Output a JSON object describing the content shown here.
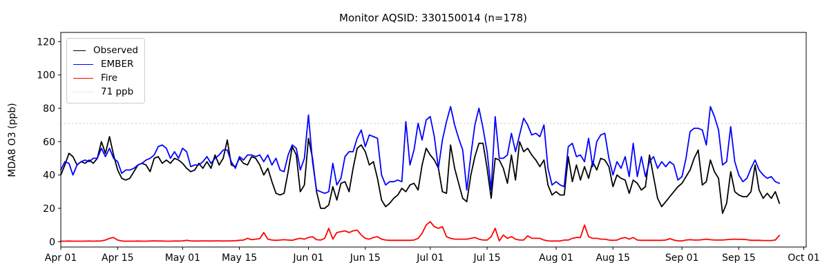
{
  "title": "Monitor AQSID: 330150014 (n=178)",
  "axes": {
    "ylabel": "MDA8 O3 (ppb)",
    "y_tick_labels": [
      "0",
      "20",
      "40",
      "60",
      "80",
      "100",
      "120"
    ],
    "y_tick_values": [
      0,
      20,
      40,
      60,
      80,
      100,
      120
    ],
    "x_tick_labels": [
      "Apr 01",
      "Apr 15",
      "May 01",
      "May 15",
      "Jun 01",
      "Jun 15",
      "Jul 01",
      "Jul 15",
      "Aug 01",
      "Aug 15",
      "Sep 01",
      "Sep 15",
      "Oct 01"
    ],
    "x_tick_days": [
      0,
      14,
      30,
      44,
      61,
      75,
      91,
      105,
      122,
      136,
      153,
      167,
      183
    ]
  },
  "legend": {
    "items": [
      {
        "label": "Observed",
        "color": "#000000",
        "linestyle": "solid"
      },
      {
        "label": "EMBER",
        "color": "#0000ff",
        "linestyle": "solid"
      },
      {
        "label": "Fire",
        "color": "#ff0000",
        "linestyle": "solid"
      },
      {
        "label": "71 ppb",
        "color": "#d3d3d3",
        "linestyle": "dotted"
      }
    ]
  },
  "chart_data": {
    "type": "line",
    "title": "Monitor AQSID: 330150014 (n=178)",
    "xlabel": "",
    "ylabel": "MDA8 O3 (ppb)",
    "x_start": "Apr 01",
    "x_end": "Sep 25",
    "frequency": "daily",
    "n_points": 178,
    "ylim": [
      -3.2,
      125.5
    ],
    "xlim_days": [
      0,
      183.6
    ],
    "grid": false,
    "legend_position": "upper left",
    "threshold": {
      "label": "71 ppb",
      "value": 71,
      "color": "#d3d3d3",
      "linestyle": "dotted"
    },
    "x_tick_labels": [
      "Apr 01",
      "Apr 15",
      "May 01",
      "May 15",
      "Jun 01",
      "Jun 15",
      "Jul 01",
      "Jul 15",
      "Aug 01",
      "Aug 15",
      "Sep 01",
      "Sep 15",
      "Oct 01"
    ],
    "x_tick_days": [
      0,
      14,
      30,
      44,
      61,
      75,
      91,
      105,
      122,
      136,
      153,
      167,
      183
    ],
    "series": [
      {
        "name": "Observed",
        "color": "#000000",
        "values": [
          40,
          46,
          53,
          51,
          46,
          48,
          47,
          49,
          47,
          50,
          60,
          53,
          63,
          52,
          43,
          38,
          37,
          38,
          42,
          46,
          47,
          46,
          42,
          50,
          51,
          47,
          49,
          47,
          50,
          49,
          47,
          44,
          42,
          43,
          47,
          44,
          48,
          44,
          52,
          46,
          50,
          61,
          46,
          45,
          50,
          47,
          46,
          51,
          50,
          46,
          40,
          44,
          36,
          29,
          28,
          29,
          42,
          57,
          52,
          30,
          34,
          62,
          50,
          30,
          20,
          20,
          22,
          33,
          25,
          35,
          36,
          30,
          44,
          56,
          58,
          54,
          46,
          48,
          38,
          25,
          21,
          23,
          26,
          28,
          32,
          30,
          34,
          35,
          31,
          46,
          56,
          52,
          49,
          44,
          30,
          29,
          58,
          44,
          35,
          26,
          24,
          40,
          51,
          59,
          59,
          44,
          26,
          50,
          49,
          44,
          35,
          52,
          37,
          60,
          54,
          56,
          52,
          49,
          45,
          49,
          34,
          28,
          30,
          28,
          28,
          51,
          36,
          46,
          37,
          45,
          38,
          48,
          43,
          50,
          49,
          45,
          33,
          40,
          38,
          37,
          29,
          37,
          35,
          31,
          33,
          52,
          39,
          26,
          21,
          24,
          27,
          30,
          33,
          35,
          39,
          43,
          50,
          55,
          34,
          36,
          49,
          42,
          38,
          17,
          23,
          42,
          30,
          28,
          27,
          27,
          30,
          46,
          31,
          26,
          29,
          26,
          30,
          23
        ]
      },
      {
        "name": "EMBER",
        "color": "#0000ff",
        "values": [
          43,
          48,
          47,
          40,
          46,
          48,
          49,
          48,
          50,
          50,
          56,
          51,
          56,
          50,
          48,
          41,
          43,
          43,
          44,
          46,
          47,
          49,
          50,
          52,
          57,
          58,
          56,
          50,
          54,
          50,
          56,
          54,
          45,
          46,
          46,
          48,
          51,
          47,
          50,
          52,
          55,
          55,
          48,
          44,
          51,
          49,
          52,
          52,
          51,
          52,
          48,
          52,
          46,
          50,
          43,
          42,
          52,
          58,
          56,
          43,
          50,
          76,
          48,
          31,
          30,
          29,
          30,
          47,
          34,
          38,
          51,
          54,
          54,
          62,
          67,
          57,
          64,
          63,
          62,
          40,
          34,
          36,
          36,
          37,
          36,
          72,
          46,
          55,
          71,
          61,
          73,
          75,
          63,
          44,
          61,
          72,
          81,
          70,
          62,
          55,
          31,
          52,
          70,
          80,
          68,
          54,
          31,
          75,
          50,
          50,
          52,
          65,
          54,
          64,
          74,
          70,
          64,
          65,
          63,
          70,
          44,
          34,
          36,
          34,
          33,
          57,
          59,
          51,
          52,
          48,
          62,
          45,
          60,
          64,
          65,
          50,
          40,
          48,
          44,
          51,
          39,
          59,
          39,
          51,
          39,
          48,
          51,
          44,
          48,
          45,
          48,
          46,
          37,
          39,
          50,
          66,
          68,
          68,
          67,
          58,
          81,
          75,
          67,
          46,
          48,
          69,
          48,
          40,
          36,
          38,
          44,
          49,
          43,
          40,
          38,
          39,
          36,
          35
        ]
      },
      {
        "name": "Fire",
        "color": "#ff0000",
        "values": [
          0.3,
          0.3,
          0.4,
          0.3,
          0.3,
          0.3,
          0.3,
          0.4,
          0.3,
          0.4,
          0.5,
          1.0,
          2.0,
          2.5,
          1.0,
          0.4,
          0.3,
          0.3,
          0.3,
          0.4,
          0.3,
          0.3,
          0.4,
          0.5,
          0.4,
          0.4,
          0.3,
          0.3,
          0.4,
          0.4,
          0.5,
          0.8,
          0.5,
          0.4,
          0.4,
          0.5,
          0.5,
          0.4,
          0.5,
          0.5,
          0.4,
          0.5,
          0.5,
          0.6,
          0.8,
          1.0,
          2.0,
          1.2,
          1.5,
          1.8,
          5.5,
          1.5,
          1.0,
          0.8,
          1.0,
          1.2,
          1.0,
          0.8,
          1.5,
          2.0,
          1.5,
          2.5,
          3.0,
          1.2,
          1.0,
          2.0,
          8.0,
          1.5,
          5.5,
          6.0,
          6.5,
          5.5,
          6.5,
          7.0,
          4.0,
          2.0,
          1.5,
          2.5,
          3.0,
          1.5,
          1.0,
          0.8,
          0.8,
          0.8,
          0.8,
          0.8,
          0.8,
          1.0,
          2.0,
          5.0,
          10.0,
          12.0,
          9.0,
          8.0,
          9.0,
          3.0,
          2.0,
          1.5,
          1.5,
          1.5,
          1.5,
          2.0,
          2.5,
          1.5,
          1.0,
          1.0,
          3.0,
          8.0,
          0.5,
          4.0,
          2.0,
          3.0,
          1.5,
          1.0,
          1.0,
          3.5,
          2.0,
          2.0,
          2.0,
          1.0,
          0.5,
          0.4,
          0.4,
          0.4,
          1.0,
          1.0,
          2.0,
          2.5,
          2.5,
          10.0,
          3.0,
          2.0,
          2.0,
          1.5,
          1.5,
          1.0,
          0.8,
          1.0,
          2.0,
          2.5,
          1.5,
          2.5,
          1.0,
          0.8,
          0.8,
          0.8,
          0.8,
          0.8,
          0.8,
          1.0,
          1.8,
          1.0,
          0.5,
          0.5,
          1.0,
          1.2,
          1.0,
          1.0,
          1.2,
          1.5,
          1.2,
          1.0,
          1.0,
          1.0,
          1.2,
          1.4,
          1.5,
          1.4,
          1.4,
          1.2,
          0.8,
          0.8,
          0.8,
          0.7,
          0.7,
          0.7,
          1.0,
          3.8
        ]
      }
    ]
  }
}
